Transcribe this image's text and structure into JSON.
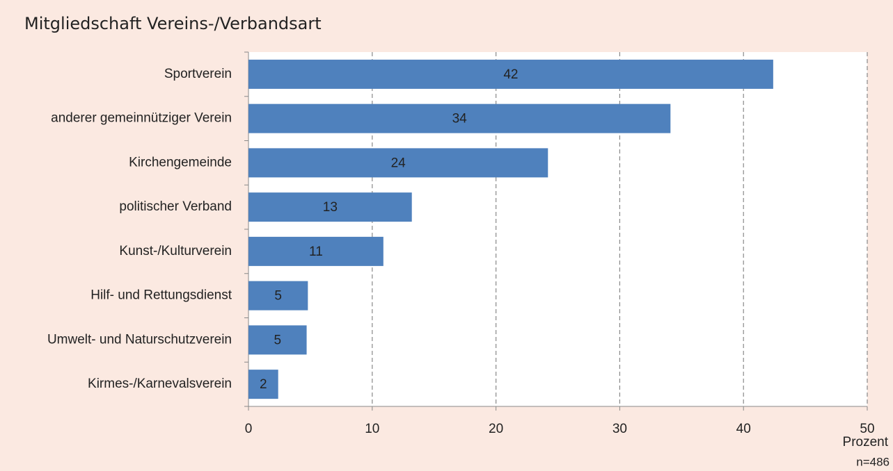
{
  "chart_data": {
    "type": "bar",
    "orientation": "horizontal",
    "title": "Mitgliedschaft Vereins-/Verbandsart",
    "categories": [
      "Sportverein",
      "anderer gemeinnütziger Verein",
      "Kirchengemeinde",
      "politischer Verband",
      "Kunst-/Kulturverein",
      "Hilf- und Rettungsdienst",
      "Umwelt- und Naturschutzverein",
      "Kirmes-/Karnevalsverein"
    ],
    "values": [
      42.4,
      34.1,
      24.2,
      13.2,
      10.9,
      4.8,
      4.7,
      2.4
    ],
    "value_labels": [
      "42",
      "34",
      "24",
      "13",
      "11",
      "5",
      "5",
      "2"
    ],
    "color": "#4f81bd",
    "xlim": [
      0,
      50
    ],
    "xticks": [
      0,
      10,
      20,
      30,
      40,
      50
    ],
    "x_label": "Prozent",
    "note": "n=486",
    "grid": true
  }
}
